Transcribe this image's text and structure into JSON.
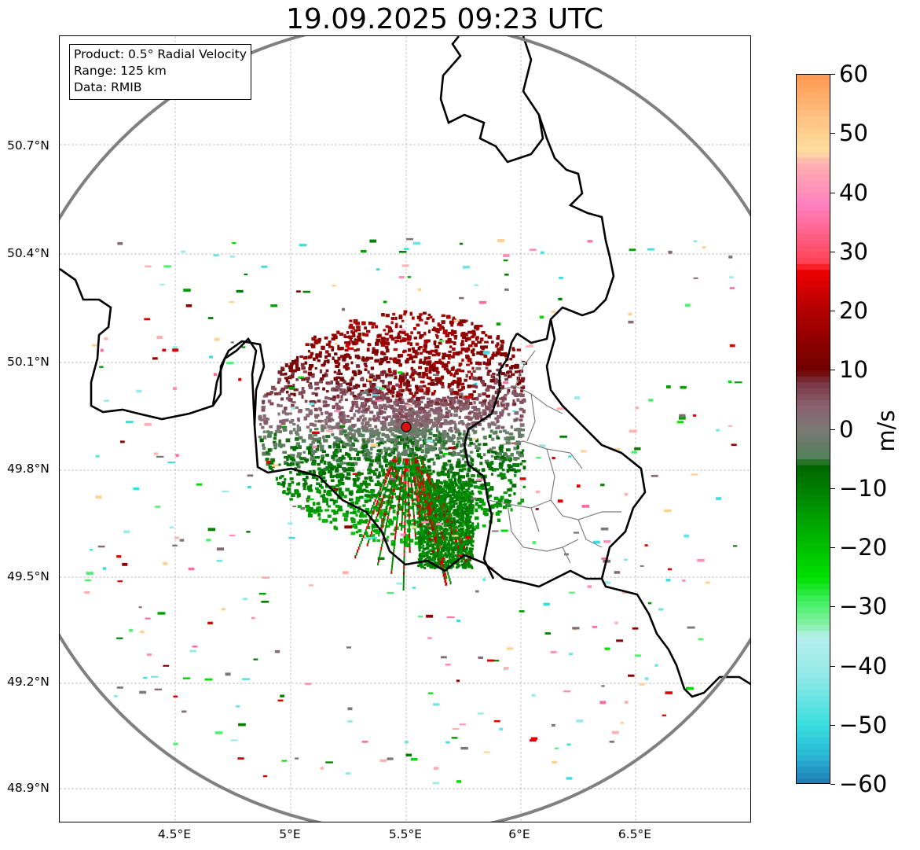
{
  "title": "19.09.2025 09:23 UTC",
  "info": {
    "product": "Product: 0.5° Radial Velocity",
    "range": "Range: 125 km",
    "source": "Data: RMIB"
  },
  "map": {
    "lat_labels": [
      "50.7°N",
      "50.4°N",
      "50.1°N",
      "49.8°N",
      "49.5°N",
      "49.2°N",
      "48.9°N"
    ],
    "lon_labels": [
      "4.5°E",
      "5°E",
      "5.5°E",
      "6°E",
      "6.5°E"
    ],
    "radar_site": {
      "lat": 49.914,
      "lon": 5.505
    },
    "range_km": 125,
    "colors": {
      "range_ring": "#808080",
      "border": "#000000",
      "subdivision": "#808080",
      "grid": "#b0b0b0",
      "radar_marker": "#e01010"
    }
  },
  "colorbar": {
    "label": "m/s",
    "ticks": [
      "60",
      "50",
      "40",
      "30",
      "20",
      "10",
      "0",
      "−10",
      "−20",
      "−30",
      "−40",
      "−50",
      "−60"
    ],
    "min": -60,
    "max": 60,
    "stops": [
      {
        "v": -60,
        "c": "#1f77b4"
      },
      {
        "v": -55,
        "c": "#29b8d6"
      },
      {
        "v": -50,
        "c": "#38dede"
      },
      {
        "v": -42,
        "c": "#8fe8e8"
      },
      {
        "v": -35,
        "c": "#b8f0f0"
      },
      {
        "v": -33,
        "c": "#88f0a8"
      },
      {
        "v": -29,
        "c": "#40f060"
      },
      {
        "v": -25,
        "c": "#00e000"
      },
      {
        "v": -15,
        "c": "#00a000"
      },
      {
        "v": -6,
        "c": "#006400"
      },
      {
        "v": -5,
        "c": "#507f58"
      },
      {
        "v": 0,
        "c": "#7a7a74"
      },
      {
        "v": 4,
        "c": "#8a6070"
      },
      {
        "v": 8,
        "c": "#7a3440"
      },
      {
        "v": 10,
        "c": "#700000"
      },
      {
        "v": 20,
        "c": "#b00000"
      },
      {
        "v": 27,
        "c": "#f00000"
      },
      {
        "v": 28,
        "c": "#ff4050"
      },
      {
        "v": 38,
        "c": "#ff80c0"
      },
      {
        "v": 45,
        "c": "#ffb0b0"
      },
      {
        "v": 47,
        "c": "#ffe0a0"
      },
      {
        "v": 53,
        "c": "#ffc080"
      },
      {
        "v": 60,
        "c": "#ff9850"
      }
    ]
  }
}
